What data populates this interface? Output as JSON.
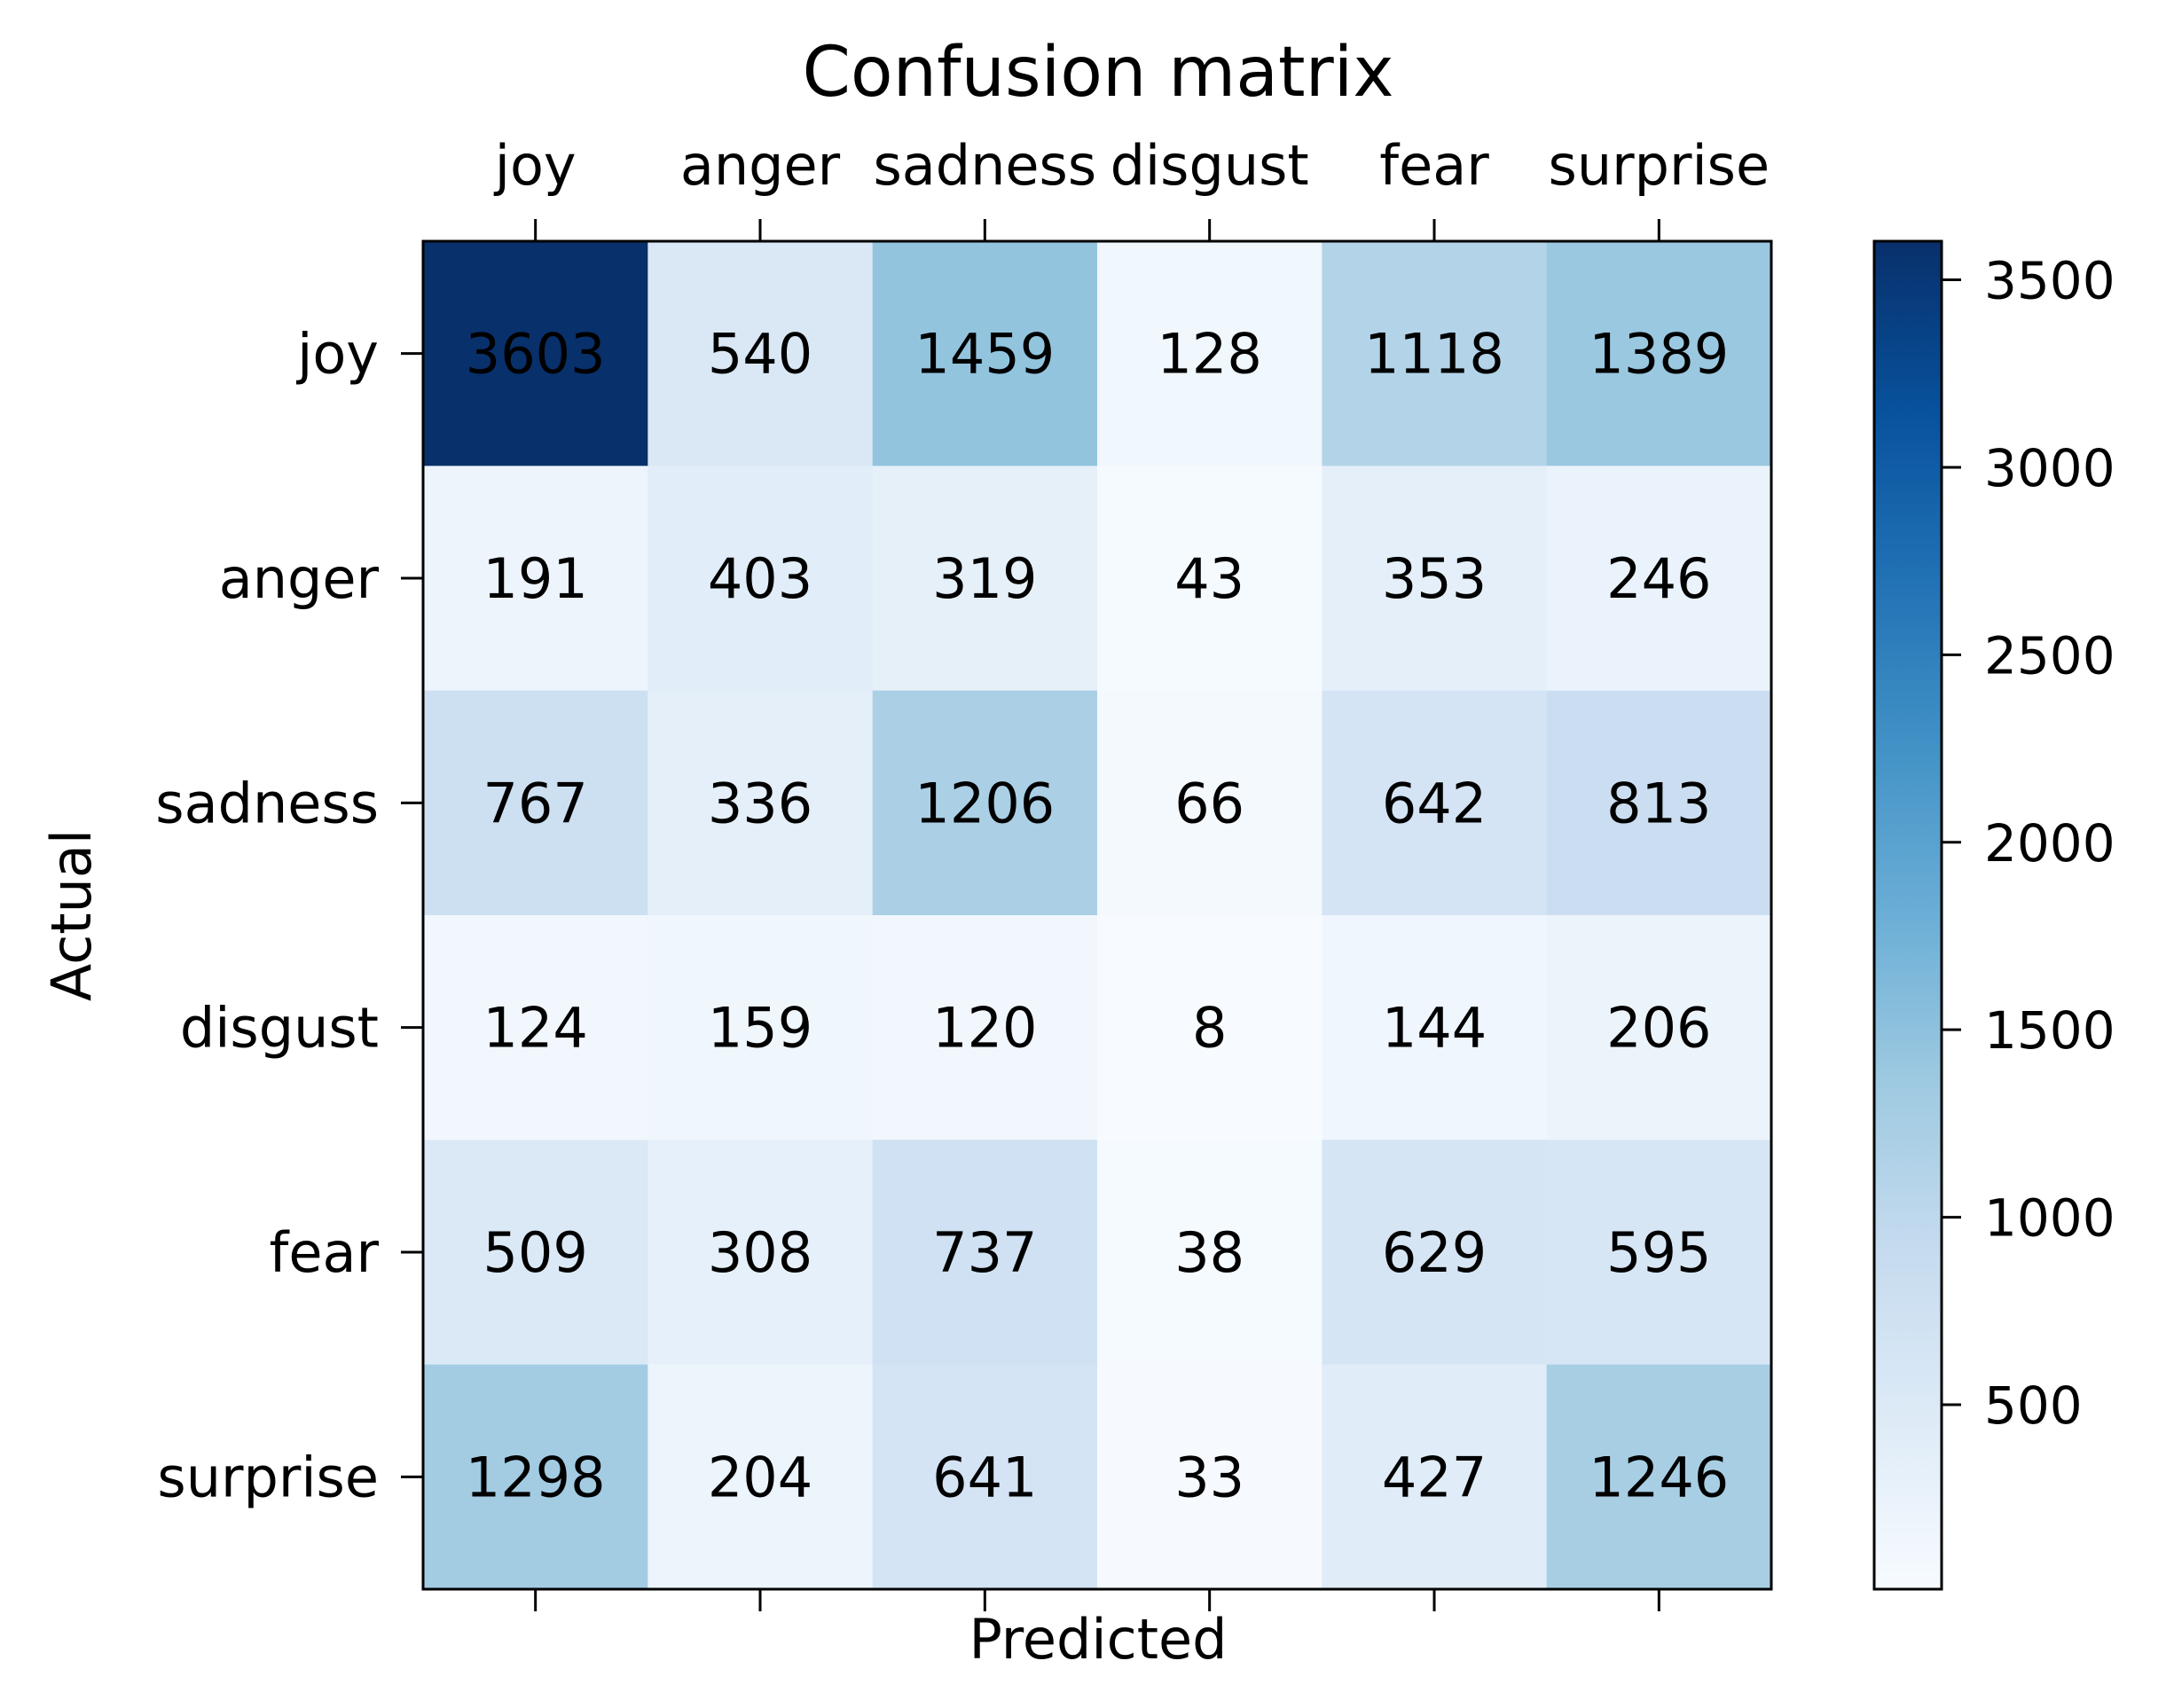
{
  "chart_data": {
    "type": "heatmap",
    "title": "Confusion matrix",
    "xlabel": "Predicted",
    "ylabel": "Actual",
    "x_categories": [
      "joy",
      "anger",
      "sadness",
      "disgust",
      "fear",
      "surprise"
    ],
    "y_categories": [
      "joy",
      "anger",
      "sadness",
      "disgust",
      "fear",
      "surprise"
    ],
    "values": [
      [
        3603,
        540,
        1459,
        128,
        1118,
        1389
      ],
      [
        191,
        403,
        319,
        43,
        353,
        246
      ],
      [
        767,
        336,
        1206,
        66,
        642,
        813
      ],
      [
        124,
        159,
        120,
        8,
        144,
        206
      ],
      [
        509,
        308,
        737,
        38,
        629,
        595
      ],
      [
        1298,
        204,
        641,
        33,
        427,
        1246
      ]
    ],
    "colormap": "Blues",
    "color_range": [
      8,
      3603
    ],
    "colorbar_ticks": [
      500,
      1000,
      1500,
      2000,
      2500,
      3000,
      3500
    ],
    "x_ticks_position": "top"
  }
}
